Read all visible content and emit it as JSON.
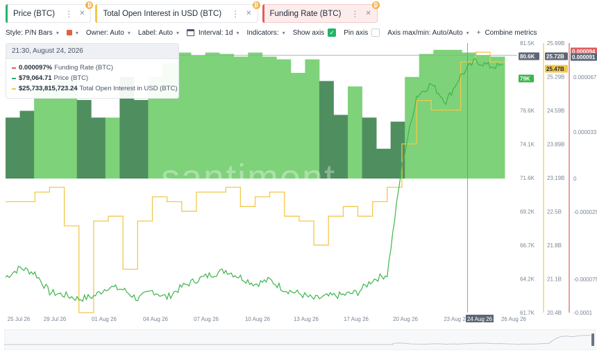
{
  "tabs": [
    {
      "label": "Price (BTC)",
      "color": "#26b26b",
      "active": false
    },
    {
      "label": "Total Open Interest in USD (BTC)",
      "color": "#f2c84b",
      "active": false
    },
    {
      "label": "Funding Rate (BTC)",
      "color": "#e05d5d",
      "active": true
    }
  ],
  "toolbar": {
    "style": "Style: P/N Bars",
    "owner": "Owner: Auto",
    "label": "Label: Auto",
    "interval": "Interval: 1d",
    "indicators": "Indicators:",
    "show_axis": "Show axis",
    "pin_axis": "Pin axis",
    "axis_maxmin": "Axis max/min: Auto/Auto",
    "combine": "Combine metrics",
    "style_color": "#e3603f"
  },
  "tooltip": {
    "time": "21:30, August 24, 2026",
    "rows": [
      {
        "value": "0.000097%",
        "name": "Funding Rate (BTC)",
        "color": "#e05d5d"
      },
      {
        "value": "$79,064.71",
        "name": "Price (BTC)",
        "color": "#26b26b"
      },
      {
        "value": "$25,733,815,723.24",
        "name": "Total Open Interest in USD (BTC)",
        "color": "#f2c84b"
      }
    ]
  },
  "watermark": "santiment",
  "chart_data": {
    "type": "bar",
    "title": "",
    "x_tick_labels": [
      "25 Jul 26",
      "29 Jul 26",
      "01 Aug 26",
      "04 Aug 26",
      "07 Aug 26",
      "10 Aug 26",
      "13 Aug 26",
      "17 Aug 26",
      "20 Aug 26",
      "23 Aug 2",
      "24 Aug 26",
      "26 Aug 26"
    ],
    "x_range": [
      "2026-07-24",
      "2026-08-27"
    ],
    "x_highlight": "24 Aug 26",
    "axes": {
      "price": {
        "ticks": [
          "81.5K",
          "79K",
          "76.6K",
          "74.1K",
          "71.6K",
          "69.2K",
          "66.7K",
          "64.2K",
          "61.7K"
        ],
        "min": 61700,
        "max": 81500,
        "current_label": "80.6K",
        "highlight_label": "79K"
      },
      "open_interest": {
        "ticks": [
          "25.99B",
          "25.29B",
          "24.59B",
          "23.89B",
          "23.19B",
          "22.5B",
          "21.8B",
          "21.1B",
          "20.4B"
        ],
        "min": 20.4,
        "max": 25.99,
        "current_label": "25.72B",
        "highlight_label": "25.47B"
      },
      "funding_rate": {
        "ticks": [
          "0.000094",
          "0.000067",
          "0.000033",
          "0",
          "-0.000025",
          "-0.000075",
          "-0.0001"
        ],
        "min": -0.0001,
        "max": 0.0001,
        "current_label": "0.000094",
        "current_label_2": "0.000091"
      }
    },
    "series": [
      {
        "name": "Funding Rate (BTC)",
        "style": "P/N Bars",
        "color_positive_light": "#7ed27a",
        "color_positive_dark": "#4f8f5f",
        "values": [
          4.5e-05,
          5e-05,
          6.8e-05,
          7.2e-05,
          7.2e-05,
          5.8e-05,
          4.5e-05,
          4.5e-05,
          7.5e-05,
          5.8e-05,
          7.5e-05,
          8.5e-05,
          9.3e-05,
          9.1e-05,
          9.3e-05,
          9.2e-05,
          9e-05,
          9.3e-05,
          9e-05,
          8.8e-05,
          7.8e-05,
          8.8e-05,
          7.2e-05,
          4.7e-05,
          6.8e-05,
          4.5e-05,
          2.2e-05,
          4.2e-05,
          7.5e-05,
          9.2e-05,
          9.5e-05,
          9.5e-05,
          9.3e-05,
          9.1e-05,
          9e-05
        ],
        "dark_bars": [
          0,
          1,
          5,
          6,
          8,
          9,
          22,
          23,
          25,
          26,
          27
        ]
      },
      {
        "name": "Total Open Interest in USD (BTC)",
        "color": "#f2c84b",
        "x": [
          "2026-07-24",
          "2026-07-25",
          "2026-07-26",
          "2026-07-27",
          "2026-07-28",
          "2026-07-29",
          "2026-07-30",
          "2026-07-31",
          "2026-08-01",
          "2026-08-02",
          "2026-08-03",
          "2026-08-04",
          "2026-08-05",
          "2026-08-06",
          "2026-08-07",
          "2026-08-08",
          "2026-08-09",
          "2026-08-10",
          "2026-08-11",
          "2026-08-12",
          "2026-08-13",
          "2026-08-14",
          "2026-08-15",
          "2026-08-16",
          "2026-08-17",
          "2026-08-18",
          "2026-08-19",
          "2026-08-20",
          "2026-08-21",
          "2026-08-22",
          "2026-08-23",
          "2026-08-24",
          "2026-08-25",
          "2026-08-26"
        ],
        "values": [
          22.7,
          22.7,
          22.9,
          23.0,
          22.2,
          20.4,
          22.3,
          22.4,
          21.3,
          22.3,
          22.8,
          22.7,
          22.5,
          22.9,
          22.9,
          23.0,
          22.6,
          22.8,
          22.9,
          22.4,
          22.3,
          21.8,
          22.4,
          22.6,
          22.4,
          22.7,
          23.0,
          23.9,
          24.8,
          24.6,
          24.6,
          25.6,
          25.8,
          25.6
        ]
      },
      {
        "name": "Price (BTC)",
        "color": "#3bb54a",
        "x": [
          "2026-07-24",
          "2026-07-25",
          "2026-07-26",
          "2026-07-27",
          "2026-07-28",
          "2026-07-29",
          "2026-07-30",
          "2026-07-31",
          "2026-08-01",
          "2026-08-02",
          "2026-08-03",
          "2026-08-04",
          "2026-08-05",
          "2026-08-06",
          "2026-08-07",
          "2026-08-08",
          "2026-08-09",
          "2026-08-10",
          "2026-08-11",
          "2026-08-12",
          "2026-08-13",
          "2026-08-14",
          "2026-08-15",
          "2026-08-16",
          "2026-08-17",
          "2026-08-18",
          "2026-08-19",
          "2026-08-20",
          "2026-08-21",
          "2026-08-22",
          "2026-08-23",
          "2026-08-24",
          "2026-08-25",
          "2026-08-26"
        ],
        "values": [
          64.3,
          65.0,
          64.6,
          63.2,
          63.0,
          62.7,
          62.9,
          63.6,
          63.4,
          62.7,
          63.3,
          62.8,
          63.6,
          64.1,
          64.5,
          64.8,
          64.3,
          63.8,
          64.1,
          63.4,
          63.1,
          62.7,
          62.9,
          63.0,
          63.2,
          64.1,
          64.5,
          72.5,
          77.6,
          78.5,
          77.2,
          79.1,
          80.2,
          79.8
        ]
      }
    ],
    "grid": false,
    "legend": "top-left"
  }
}
